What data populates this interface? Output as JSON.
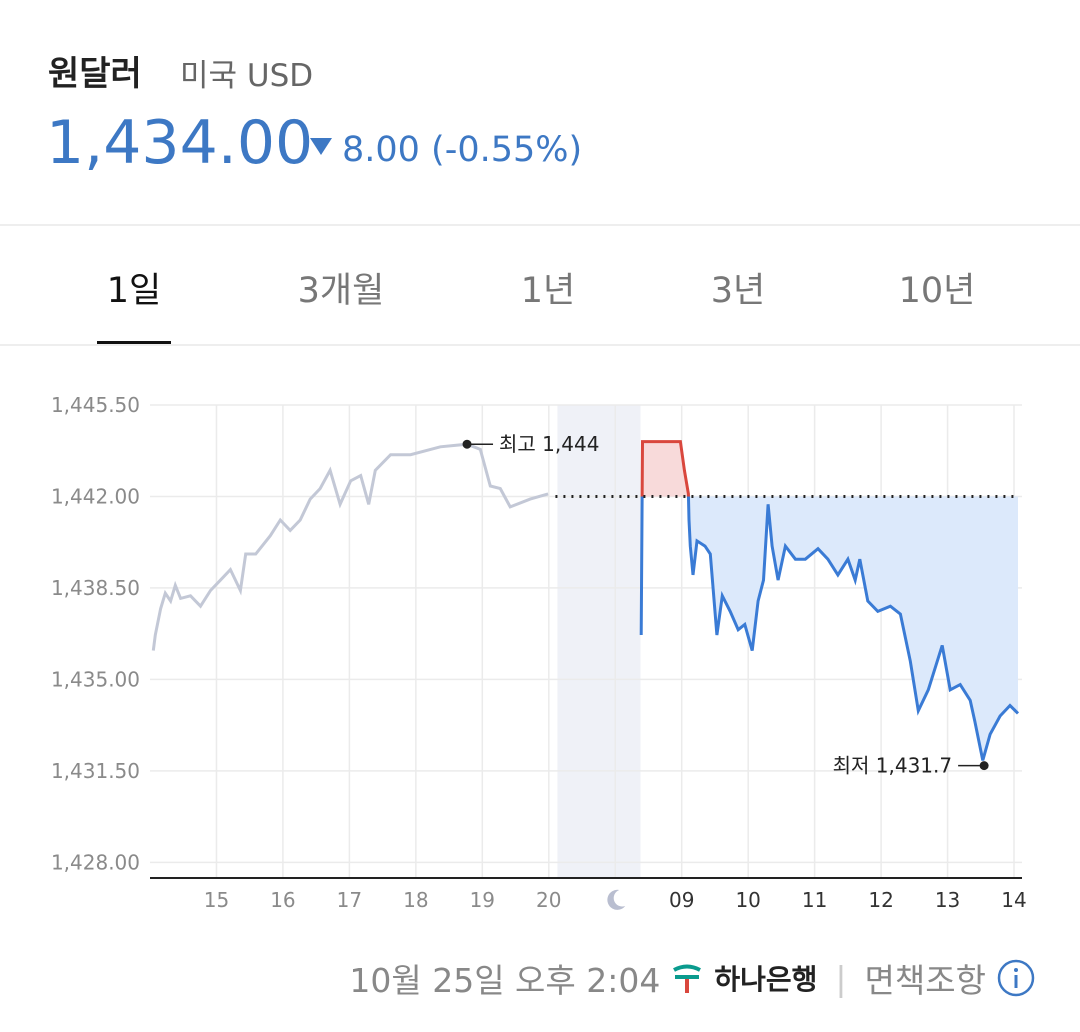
{
  "header": {
    "title": "원달러",
    "subtitle": "미국 USD",
    "price": "1,434.00",
    "change": "8.00 (-0.55%)"
  },
  "tabs": [
    "1일",
    "3개월",
    "1년",
    "3년",
    "10년"
  ],
  "chart_data": {
    "type": "line",
    "ylim": [
      1427.4,
      1445.5
    ],
    "yticks": [
      {
        "value": 1445.5,
        "label": "1,445.50"
      },
      {
        "value": 1442,
        "label": "1,442.00"
      },
      {
        "value": 1438.5,
        "label": "1,438.50"
      },
      {
        "value": 1435,
        "label": "1,435.00"
      },
      {
        "value": 1431.5,
        "label": "1,431.50"
      },
      {
        "value": 1428,
        "label": "1,428.00"
      }
    ],
    "xlim": [
      -1,
      12.12
    ],
    "xticks": [
      {
        "value": 0,
        "label": "15"
      },
      {
        "value": 1,
        "label": "16"
      },
      {
        "value": 2,
        "label": "17"
      },
      {
        "value": 3,
        "label": "18"
      },
      {
        "value": 4,
        "label": "19"
      },
      {
        "value": 5,
        "label": "20"
      },
      {
        "value": 6
      },
      {
        "value": 7,
        "label": "09"
      },
      {
        "value": 8,
        "label": "10"
      },
      {
        "value": 9,
        "label": "11"
      },
      {
        "value": 10,
        "label": "12"
      },
      {
        "value": 11,
        "label": "13"
      },
      {
        "value": 12,
        "label": "14"
      }
    ],
    "grid": true,
    "night": [
      5.13,
      6.38
    ],
    "reference": 1442,
    "series": [
      {
        "color": "#c3c8d6",
        "x": [
          -0.95,
          -0.92,
          -0.84,
          -0.77,
          -0.69,
          -0.62,
          -0.54,
          -0.39,
          -0.24,
          -0.09,
          0.06,
          0.21,
          0.36,
          0.44,
          0.59,
          0.81,
          0.96,
          1.11,
          1.26,
          1.41,
          1.56,
          1.71,
          1.86,
          2.02,
          2.17,
          2.29,
          2.39,
          2.62,
          2.92,
          3.37,
          3.77,
          3.97,
          4.12,
          4.27,
          4.42,
          4.72,
          4.99
        ],
        "values": [
          1436.1,
          1436.7,
          1437.7,
          1438.3,
          1438.0,
          1438.6,
          1438.1,
          1438.2,
          1437.8,
          1438.4,
          1438.8,
          1439.2,
          1438.4,
          1439.8,
          1439.8,
          1440.5,
          1441.1,
          1440.7,
          1441.1,
          1441.9,
          1442.3,
          1443.0,
          1441.7,
          1442.6,
          1442.8,
          1441.7,
          1443.0,
          1443.6,
          1443.6,
          1443.9,
          1444.0,
          1443.8,
          1442.4,
          1442.3,
          1441.6,
          1441.9,
          1442.1
        ]
      },
      {
        "color": "#3a7bd5",
        "over_color": "#d9473d",
        "fill": "#dce9fb",
        "over_fill": "#f8dada",
        "x": [
          6.39,
          6.41,
          6.98,
          7.04,
          7.1,
          7.11,
          7.13,
          7.17,
          7.23,
          7.35,
          7.43,
          7.53,
          7.61,
          7.73,
          7.85,
          7.95,
          8.06,
          8.15,
          8.23,
          8.3,
          8.36,
          8.45,
          8.56,
          8.71,
          8.86,
          9.05,
          9.2,
          9.35,
          9.5,
          9.61,
          9.68,
          9.8,
          9.95,
          10.14,
          10.29,
          10.44,
          10.56,
          10.71,
          10.92,
          11.04,
          11.19,
          11.34,
          11.41,
          11.53,
          11.64,
          11.79,
          11.94,
          12.06
        ],
        "values": [
          1436.7,
          1444.1,
          1444.1,
          1443.0,
          1442.1,
          1441.1,
          1440.1,
          1439.0,
          1440.3,
          1440.1,
          1439.8,
          1436.7,
          1438.2,
          1437.6,
          1436.9,
          1437.1,
          1436.1,
          1438.0,
          1438.8,
          1441.7,
          1440.1,
          1438.8,
          1440.1,
          1439.6,
          1439.6,
          1440.0,
          1439.6,
          1439.0,
          1439.6,
          1438.8,
          1439.6,
          1438.0,
          1437.6,
          1437.8,
          1437.5,
          1435.7,
          1433.8,
          1434.6,
          1436.3,
          1434.6,
          1434.8,
          1434.2,
          1433.4,
          1431.9,
          1432.9,
          1433.6,
          1434.0,
          1433.7
        ]
      }
    ],
    "annotations": [
      {
        "label": "최고 1,444",
        "x": 3.77,
        "value": 1444,
        "side": "right"
      },
      {
        "label": "최저 1,431.7",
        "x": 11.55,
        "value": 1431.7,
        "side": "left"
      }
    ]
  },
  "footer": {
    "timestamp": "10월 25일 오후 2:04",
    "bank": "하나은행",
    "disclaimer": "면책조항"
  }
}
